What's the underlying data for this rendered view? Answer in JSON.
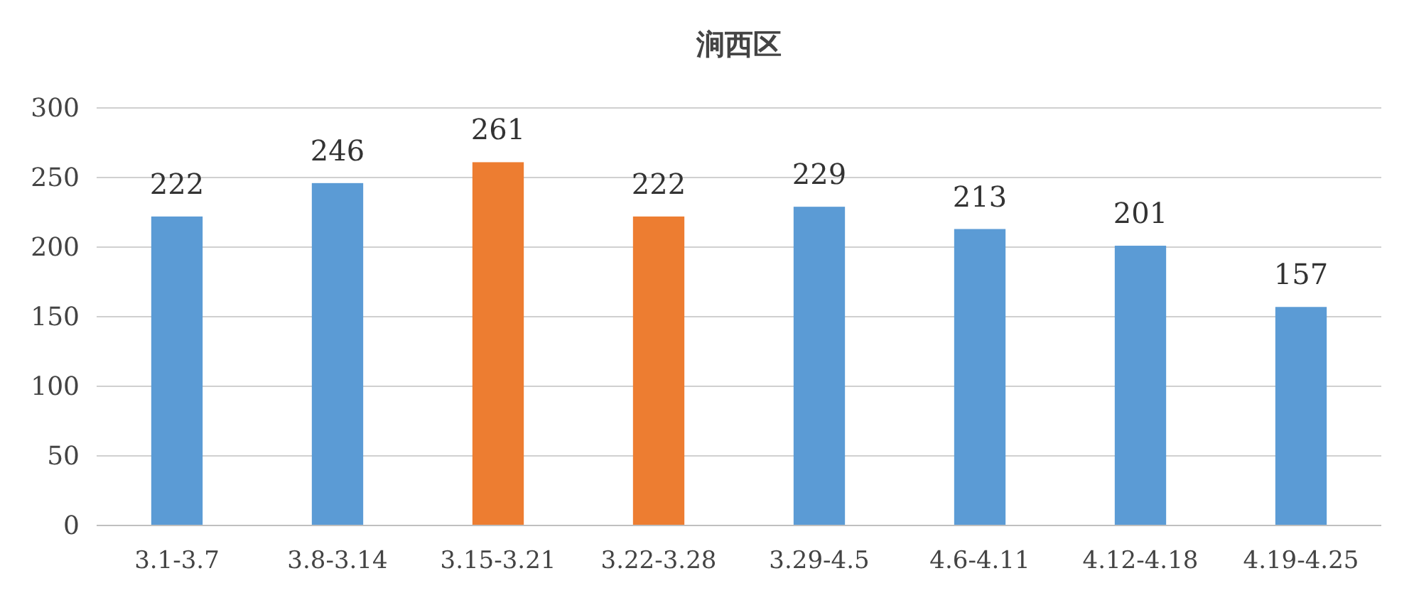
{
  "chart_data": {
    "type": "bar",
    "title": "涧西区",
    "categories": [
      "3.1-3.7",
      "3.8-3.14",
      "3.15-3.21",
      "3.22-3.28",
      "3.29-4.5",
      "4.6-4.11",
      "4.12-4.18",
      "4.19-4.25"
    ],
    "values": [
      222,
      246,
      261,
      222,
      229,
      213,
      201,
      157
    ],
    "colors": [
      "#5b9bd5",
      "#5b9bd5",
      "#ed7d31",
      "#ed7d31",
      "#5b9bd5",
      "#5b9bd5",
      "#5b9bd5",
      "#5b9bd5"
    ],
    "ylim": [
      0,
      300
    ],
    "yticks": [
      0,
      50,
      100,
      150,
      200,
      250,
      300
    ],
    "grid": "y",
    "data_labels": true
  }
}
